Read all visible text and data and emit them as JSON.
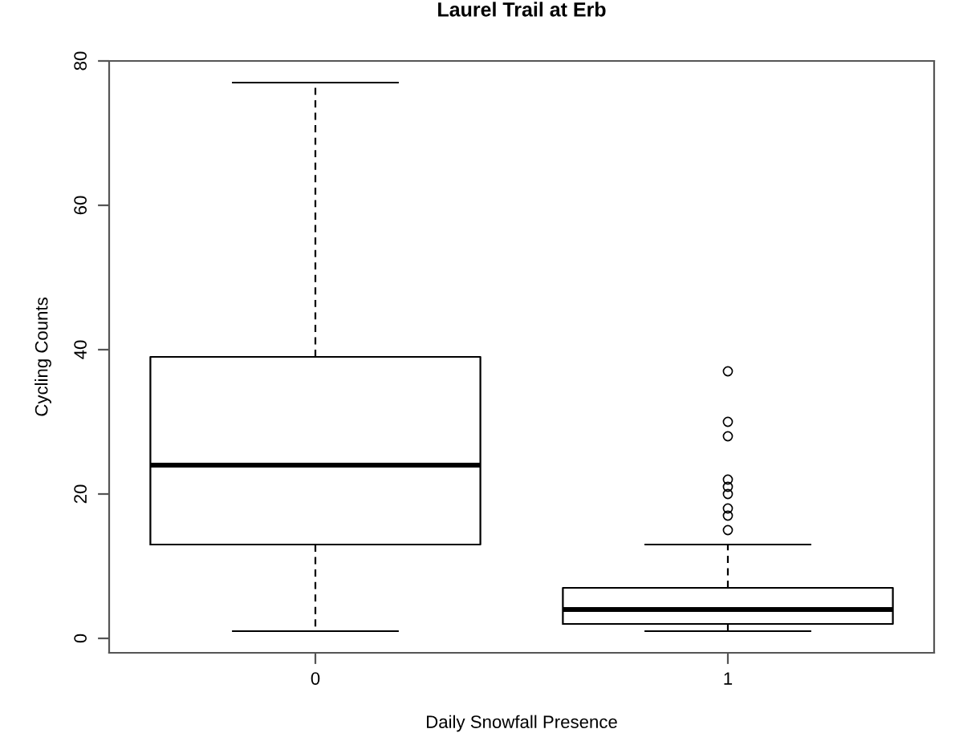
{
  "chart_data": {
    "type": "box",
    "title": "Laurel Trail at Erb",
    "xlabel": "Daily Snowfall Presence",
    "ylabel": "Cycling Counts",
    "categories": [
      "0",
      "1"
    ],
    "boxes": [
      {
        "low": 1,
        "q1": 13,
        "median": 24,
        "q3": 39,
        "high": 77
      },
      {
        "low": 1,
        "q1": 2,
        "median": 4,
        "q3": 7,
        "high": 13,
        "outliers": [
          15,
          17,
          18,
          20,
          21,
          22,
          28,
          30,
          37
        ]
      }
    ],
    "ylim": [
      -2,
      80
    ],
    "yticks": [
      0,
      20,
      40,
      60,
      80
    ],
    "grid": false,
    "legend": false
  }
}
